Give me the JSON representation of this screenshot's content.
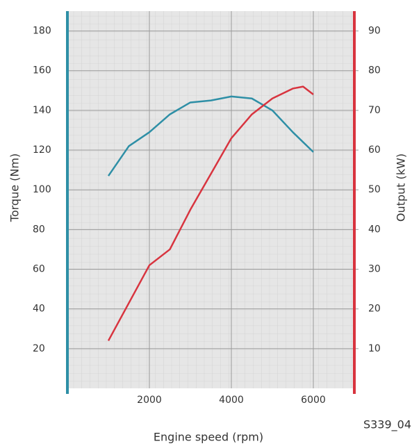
{
  "chart_data": {
    "type": "line",
    "x_label": "Engine speed (rpm)",
    "y_label": "Torque (Nm)",
    "y2_label": "Output (kW)",
    "figure_id": "S339_04",
    "xlim": [
      0,
      7000
    ],
    "xticks": [
      2000,
      4000,
      6000
    ],
    "ylim": [
      0,
      190
    ],
    "yticks": [
      20,
      40,
      60,
      80,
      100,
      120,
      140,
      160,
      180
    ],
    "y2lim": [
      0,
      95
    ],
    "y2ticks": [
      10,
      20,
      30,
      40,
      50,
      60,
      70,
      80,
      90
    ],
    "grid": true,
    "series": [
      {
        "name": "Torque",
        "color": "#2e8fa6",
        "axis": "y",
        "x": [
          1000,
          1500,
          2000,
          2500,
          3000,
          3500,
          4000,
          4500,
          5000,
          5500,
          6000
        ],
        "values": [
          107,
          122,
          129,
          138,
          144,
          145,
          147,
          146,
          140,
          129,
          119
        ]
      },
      {
        "name": "Output",
        "color": "#d8343f",
        "axis": "y2",
        "x": [
          1000,
          2000,
          2500,
          3000,
          3500,
          4000,
          4500,
          5000,
          5500,
          5750,
          6000
        ],
        "values": [
          12,
          31,
          35,
          45,
          54,
          63,
          69,
          73,
          75.5,
          76,
          74
        ]
      }
    ]
  }
}
